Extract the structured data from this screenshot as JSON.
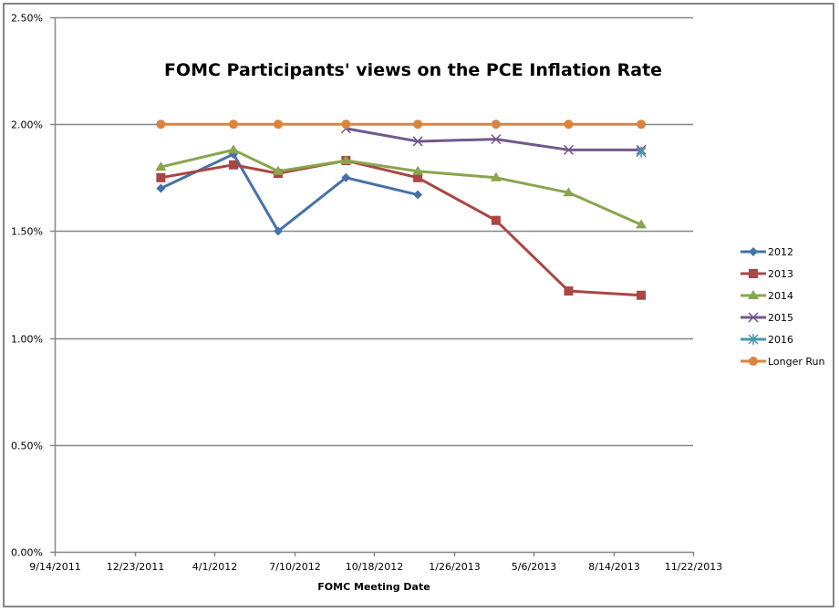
{
  "chart_data": {
    "type": "line",
    "title": "FOMC Participants' views on the PCE Inflation Rate",
    "xlabel": "FOMC Meeting Date",
    "ylabel": "",
    "x_ticks": [
      "9/14/2011",
      "12/23/2011",
      "4/1/2012",
      "7/10/2012",
      "10/18/2012",
      "1/26/2013",
      "5/6/2013",
      "8/14/2013",
      "11/22/2013"
    ],
    "y_ticks": [
      "0.00%",
      "0.50%",
      "1.00%",
      "1.50%",
      "2.00%",
      "2.50%"
    ],
    "ylim": [
      0,
      2.5
    ],
    "xlim": [
      "9/14/2011",
      "11/22/2013"
    ],
    "grid": "horizontal",
    "legend": "right",
    "x": [
      "1/25/2012",
      "4/25/2012",
      "6/20/2012",
      "9/13/2012",
      "12/12/2012",
      "3/20/2013",
      "6/19/2013",
      "9/18/2013"
    ],
    "series": [
      {
        "name": "2012",
        "color": "#4572A7",
        "marker": "diamond",
        "values": [
          1.7,
          1.86,
          1.5,
          1.75,
          1.67,
          null,
          null,
          null
        ]
      },
      {
        "name": "2013",
        "color": "#AA4643",
        "marker": "square",
        "values": [
          1.75,
          1.81,
          1.77,
          1.83,
          1.75,
          1.55,
          1.22,
          1.2
        ]
      },
      {
        "name": "2014",
        "color": "#89A54E",
        "marker": "triangle",
        "values": [
          1.8,
          1.88,
          1.78,
          1.83,
          1.78,
          1.75,
          1.68,
          1.53
        ]
      },
      {
        "name": "2015",
        "color": "#71588F",
        "marker": "x",
        "values": [
          null,
          null,
          null,
          1.98,
          1.92,
          1.93,
          1.88,
          1.88
        ]
      },
      {
        "name": "2016",
        "color": "#4198AF",
        "marker": "star",
        "values": [
          null,
          null,
          null,
          null,
          null,
          null,
          null,
          1.87
        ]
      },
      {
        "name": "Longer Run",
        "color": "#DB843D",
        "marker": "circle",
        "values": [
          2.0,
          2.0,
          2.0,
          2.0,
          2.0,
          2.0,
          2.0,
          2.0
        ]
      }
    ]
  }
}
